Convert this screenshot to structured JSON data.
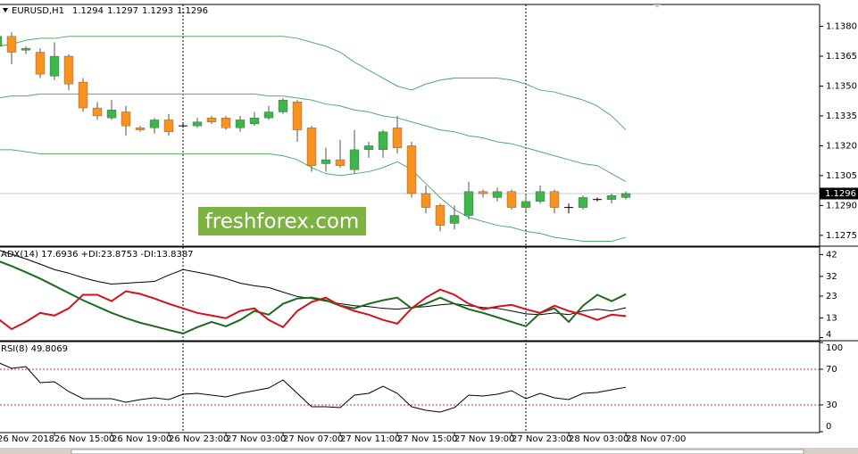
{
  "chart_data": [
    {
      "type": "candlestick",
      "title": "EURUSD,H1",
      "categories": [
        "26 Nov 2018",
        null,
        null,
        null,
        "26 Nov 15:00",
        null,
        null,
        null,
        "26 Nov 19:00",
        null,
        null,
        null,
        "26 Nov 23:00",
        null,
        null,
        null,
        "27 Nov 03:00",
        null,
        null,
        null,
        "27 Nov 07:00",
        null,
        null,
        null,
        "27 Nov 11:00",
        null,
        null,
        null,
        "27 Nov 15:00",
        null,
        null,
        null,
        "27 Nov 19:00",
        null,
        null,
        null,
        "27 Nov 23:00",
        null,
        null,
        null,
        "28 Nov 03:00",
        null,
        null,
        null,
        "28 Nov 07:00"
      ],
      "open": [
        1.137,
        1.1375,
        1.1368,
        1.1367,
        1.1355,
        1.1365,
        1.1352,
        1.1339,
        1.1334,
        1.1337,
        1.1329,
        1.1329,
        1.1333,
        1.133,
        1.133,
        1.1334,
        1.1334,
        1.1329,
        1.1331,
        1.1334,
        1.1337,
        1.1342,
        1.1329,
        1.1311,
        1.1313,
        1.1308,
        1.1318,
        1.1318,
        1.1329,
        1.132,
        1.1296,
        1.129,
        1.1281,
        1.1285,
        1.1297,
        1.1294,
        1.1297,
        1.1289,
        1.1292,
        1.1297,
        1.1289,
        1.1289,
        1.1293,
        1.1293,
        1.1294
      ],
      "high": [
        1.1377,
        1.1377,
        1.137,
        1.1369,
        1.1372,
        1.1366,
        1.1354,
        1.1342,
        1.1343,
        1.134,
        1.133,
        1.1334,
        1.1336,
        1.1331,
        1.1334,
        1.1335,
        1.1335,
        1.1335,
        1.1337,
        1.134,
        1.1344,
        1.1343,
        1.133,
        1.1319,
        1.1323,
        1.1328,
        1.1322,
        1.1328,
        1.1335,
        1.1322,
        1.13,
        1.1291,
        1.129,
        1.1302,
        1.1298,
        1.1299,
        1.1298,
        1.1295,
        1.13,
        1.1298,
        1.1291,
        1.1295,
        1.1294,
        1.1296,
        1.1297
      ],
      "low": [
        1.1365,
        1.1361,
        1.1366,
        1.1354,
        1.1353,
        1.1348,
        1.1337,
        1.1333,
        1.1333,
        1.1325,
        1.1327,
        1.1326,
        1.1325,
        1.1329,
        1.1329,
        1.1331,
        1.1328,
        1.1327,
        1.133,
        1.1333,
        1.1336,
        1.1322,
        1.1307,
        1.1307,
        1.1309,
        1.1306,
        1.1314,
        1.1314,
        1.1316,
        1.1294,
        1.1286,
        1.1277,
        1.1278,
        1.1283,
        1.1294,
        1.1292,
        1.1288,
        1.1287,
        1.1291,
        1.1286,
        1.1286,
        1.1288,
        1.1292,
        1.1291,
        1.1293
      ],
      "close": [
        1.1375,
        1.1367,
        1.1369,
        1.1356,
        1.1365,
        1.1351,
        1.1339,
        1.1335,
        1.1338,
        1.133,
        1.1328,
        1.1333,
        1.1327,
        1.133,
        1.1332,
        1.1332,
        1.1329,
        1.1333,
        1.1334,
        1.1337,
        1.1343,
        1.1328,
        1.131,
        1.1313,
        1.131,
        1.1318,
        1.132,
        1.1327,
        1.1319,
        1.1296,
        1.1289,
        1.128,
        1.1285,
        1.1297,
        1.1296,
        1.1297,
        1.1289,
        1.1292,
        1.1297,
        1.1289,
        1.1289,
        1.1294,
        1.1293,
        1.1295,
        1.1296
      ],
      "colors": {
        "up": "#3cb54a",
        "down": "#f7931e",
        "doji": "#000000"
      },
      "bands": {
        "color": "#4fae6c",
        "upper": [
          1.137,
          1.1371,
          1.1373,
          1.1374,
          1.1374,
          1.1375,
          1.1375,
          1.1375,
          1.1375,
          1.1375,
          1.1375,
          1.1375,
          1.1375,
          1.1375,
          1.1375,
          1.1375,
          1.1375,
          1.1375,
          1.1375,
          1.1375,
          1.1375,
          1.1374,
          1.1372,
          1.137,
          1.1367,
          1.1362,
          1.1358,
          1.1354,
          1.135,
          1.1348,
          1.1351,
          1.1353,
          1.1354,
          1.1354,
          1.1354,
          1.1354,
          1.1353,
          1.1351,
          1.1348,
          1.1347,
          1.1345,
          1.1343,
          1.134,
          1.1335,
          1.1328
        ],
        "middle": [
          1.1344,
          1.1345,
          1.1345,
          1.1346,
          1.1346,
          1.1346,
          1.1346,
          1.1346,
          1.1346,
          1.1346,
          1.1346,
          1.1346,
          1.1346,
          1.1346,
          1.1346,
          1.1346,
          1.1346,
          1.1346,
          1.1346,
          1.1345,
          1.1345,
          1.1344,
          1.1343,
          1.1341,
          1.134,
          1.1338,
          1.1337,
          1.1335,
          1.1334,
          1.1332,
          1.133,
          1.1328,
          1.1327,
          1.1325,
          1.1324,
          1.1322,
          1.1321,
          1.1319,
          1.1317,
          1.1315,
          1.1313,
          1.1311,
          1.131,
          1.1306,
          1.1302
        ],
        "lower": [
          1.1318,
          1.1318,
          1.1317,
          1.1316,
          1.1316,
          1.1316,
          1.1316,
          1.1316,
          1.1316,
          1.1316,
          1.1316,
          1.1316,
          1.1316,
          1.1316,
          1.1316,
          1.1316,
          1.1316,
          1.1316,
          1.1316,
          1.1316,
          1.1315,
          1.1313,
          1.1309,
          1.1306,
          1.1305,
          1.1306,
          1.1307,
          1.1309,
          1.1312,
          1.1308,
          1.1301,
          1.1294,
          1.1288,
          1.1284,
          1.1282,
          1.128,
          1.1279,
          1.1277,
          1.1276,
          1.1274,
          1.1273,
          1.1272,
          1.1272,
          1.1272,
          1.1274
        ]
      },
      "watermark": "freshforex.com",
      "ylim": [
        1.127,
        1.1391
      ],
      "yticks": [
        {
          "value": 1.138,
          "label": "1.1380"
        },
        1.1365,
        {
          "value": 1.135,
          "label": "1.1350"
        },
        1.1335,
        {
          "value": 1.132,
          "label": "1.1320"
        },
        1.1305,
        {
          "value": 1.129,
          "label": "1.1290"
        },
        1.1275
      ]
    },
    {
      "type": "line",
      "title": "ADX(14) 17.6936 +DI:23.8753 -DI:13.8387",
      "series": [
        {
          "color": "#000000",
          "values": [
            44.2,
            42.1,
            40.0,
            37.6,
            35.1,
            33.5,
            31.4,
            29.7,
            28.5,
            28.9,
            29.3,
            29.7,
            32.6,
            35.1,
            33.9,
            32.6,
            31.0,
            28.9,
            27.7,
            26.9,
            24.8,
            22.8,
            21.9,
            20.7,
            19.5,
            18.6,
            18.2,
            17.4,
            17.0,
            17.8,
            18.2,
            19.0,
            19.5,
            18.6,
            17.8,
            17.4,
            16.2,
            14.9,
            14.5,
            15.3,
            14.5,
            16.2,
            17.0,
            16.2,
            17.6936
          ]
        },
        {
          "color": "#1d6b1d",
          "values": [
            39.2,
            36.7,
            33.9,
            31.0,
            27.7,
            24.4,
            21.1,
            18.2,
            15.3,
            12.9,
            10.8,
            9.2,
            7.5,
            5.9,
            8.8,
            11.2,
            9.2,
            12.1,
            16.2,
            14.5,
            19.5,
            21.9,
            22.3,
            21.1,
            18.6,
            17.4,
            19.5,
            21.1,
            22.3,
            17.4,
            19.5,
            22.3,
            19.5,
            17.0,
            15.3,
            13.3,
            11.2,
            9.2,
            15.3,
            17.4,
            11.2,
            18.6,
            23.6,
            20.7,
            23.8753
          ]
        },
        {
          "color": "#d3121b",
          "values": [
            12.9,
            7.9,
            11.2,
            15.3,
            14.1,
            17.4,
            23.6,
            23.6,
            20.7,
            25.2,
            24.0,
            21.9,
            19.5,
            17.4,
            15.3,
            14.1,
            12.9,
            16.2,
            17.4,
            12.1,
            8.8,
            16.2,
            20.3,
            22.3,
            18.6,
            16.2,
            14.5,
            12.1,
            10.4,
            17.4,
            22.3,
            26.0,
            23.6,
            19.5,
            17.0,
            18.2,
            19.0,
            17.0,
            15.3,
            18.6,
            16.2,
            14.5,
            12.1,
            14.5,
            13.8387
          ]
        }
      ],
      "ylim": [
        3,
        45
      ],
      "yticks": [
        42,
        32,
        23,
        13,
        4
      ]
    },
    {
      "type": "line",
      "title": "RSI(8) 49.8069",
      "series": [
        {
          "color": "#000000",
          "values": [
            78,
            71,
            73,
            55,
            56,
            45,
            37,
            37,
            37,
            33,
            36,
            38,
            36,
            42,
            43,
            41,
            39,
            43,
            46,
            49,
            58,
            43,
            28,
            28,
            27,
            41,
            43,
            51,
            43,
            28,
            24,
            22,
            27,
            41,
            40,
            42,
            46,
            37,
            43,
            38,
            36,
            43,
            44,
            47,
            49.8069
          ]
        }
      ],
      "levels": [
        70,
        30
      ],
      "level_color": "#c0392b",
      "ylim": [
        0,
        100
      ],
      "yticks": [
        100,
        70,
        30,
        0
      ]
    }
  ]
}
